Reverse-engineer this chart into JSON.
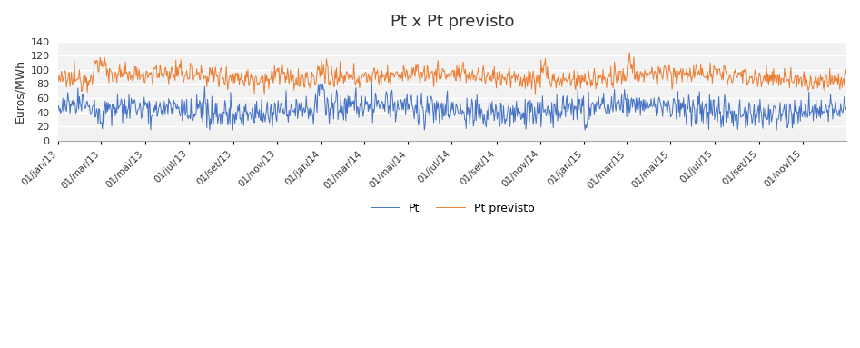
{
  "title": "Pt x Pt previsto",
  "ylabel": "Euros/MWh",
  "ylim": [
    0,
    140
  ],
  "yticks": [
    0,
    20,
    40,
    60,
    80,
    100,
    120,
    140
  ],
  "background_color": "#ffffff",
  "plot_bg_color": "#f2f2f2",
  "grid_color": "#ffffff",
  "line1_color": "#4472c4",
  "line2_color": "#ed7d31",
  "line1_label": "Pt",
  "line2_label": "Pt previsto",
  "figsize": [
    9.47,
    3.83
  ],
  "dpi": 100,
  "x_tick_labels": [
    "01/jan/13",
    "01/mar/13",
    "01/mai/13",
    "01/jul/13",
    "01/set/13",
    "01/nov/13",
    "01/jan/14",
    "01/mar/14",
    "01/mai/14",
    "01/jul/14",
    "01/set/14",
    "01/nov/14",
    "01/jan/15",
    "01/mar/15",
    "01/mai/15",
    "01/jul/15",
    "01/set/15",
    "01/nov/15"
  ]
}
